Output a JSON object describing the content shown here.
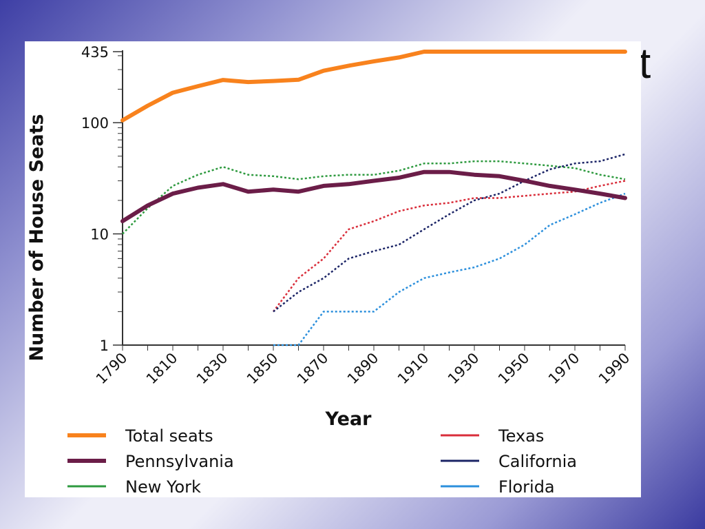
{
  "slide": {
    "title_fragment": "t",
    "background_colors": [
      "#3e3fa5",
      "#eeeef8",
      "#3b3ba0"
    ]
  },
  "chart_data": {
    "type": "line",
    "title": "",
    "xlabel": "Year",
    "ylabel": "Number of House Seats",
    "xlim": [
      1790,
      1990
    ],
    "ylim": [
      1,
      435
    ],
    "yscale": "log",
    "x_ticks": [
      "1790",
      "1810",
      "1830",
      "1850",
      "1870",
      "1890",
      "1910",
      "1930",
      "1950",
      "1970",
      "1990"
    ],
    "y_ticks": [
      "1",
      "10",
      "100",
      "435"
    ],
    "grid": false,
    "legend_position": "bottom",
    "series": [
      {
        "name": "Total seats",
        "color": "#f8821d",
        "style": "solid",
        "weight": "heavy",
        "points": [
          [
            1790,
            105
          ],
          [
            1800,
            142
          ],
          [
            1810,
            186
          ],
          [
            1820,
            213
          ],
          [
            1830,
            242
          ],
          [
            1840,
            232
          ],
          [
            1850,
            237
          ],
          [
            1860,
            243
          ],
          [
            1870,
            293
          ],
          [
            1880,
            325
          ],
          [
            1890,
            356
          ],
          [
            1900,
            386
          ],
          [
            1910,
            435
          ],
          [
            1920,
            435
          ],
          [
            1930,
            435
          ],
          [
            1940,
            435
          ],
          [
            1950,
            435
          ],
          [
            1960,
            435
          ],
          [
            1970,
            435
          ],
          [
            1980,
            435
          ],
          [
            1990,
            435
          ]
        ]
      },
      {
        "name": "Pennsylvania",
        "color": "#6b1d48",
        "style": "solid",
        "weight": "heavy",
        "points": [
          [
            1790,
            13
          ],
          [
            1800,
            18
          ],
          [
            1810,
            23
          ],
          [
            1820,
            26
          ],
          [
            1830,
            28
          ],
          [
            1840,
            24
          ],
          [
            1850,
            25
          ],
          [
            1860,
            24
          ],
          [
            1870,
            27
          ],
          [
            1880,
            28
          ],
          [
            1890,
            30
          ],
          [
            1900,
            32
          ],
          [
            1910,
            36
          ],
          [
            1920,
            36
          ],
          [
            1930,
            34
          ],
          [
            1940,
            33
          ],
          [
            1950,
            30
          ],
          [
            1960,
            27
          ],
          [
            1970,
            25
          ],
          [
            1980,
            23
          ],
          [
            1990,
            21
          ]
        ]
      },
      {
        "name": "New York",
        "color": "#2e9a3f",
        "style": "dotted",
        "weight": "light",
        "points": [
          [
            1790,
            10
          ],
          [
            1800,
            17
          ],
          [
            1810,
            27
          ],
          [
            1820,
            34
          ],
          [
            1830,
            40
          ],
          [
            1840,
            34
          ],
          [
            1850,
            33
          ],
          [
            1860,
            31
          ],
          [
            1870,
            33
          ],
          [
            1880,
            34
          ],
          [
            1890,
            34
          ],
          [
            1900,
            37
          ],
          [
            1910,
            43
          ],
          [
            1920,
            43
          ],
          [
            1930,
            45
          ],
          [
            1940,
            45
          ],
          [
            1950,
            43
          ],
          [
            1960,
            41
          ],
          [
            1970,
            39
          ],
          [
            1980,
            34
          ],
          [
            1990,
            31
          ]
        ]
      },
      {
        "name": "Texas",
        "color": "#d92d3a",
        "style": "dotted",
        "weight": "light",
        "points": [
          [
            1850,
            2
          ],
          [
            1860,
            4
          ],
          [
            1870,
            6
          ],
          [
            1880,
            11
          ],
          [
            1890,
            13
          ],
          [
            1900,
            16
          ],
          [
            1910,
            18
          ],
          [
            1920,
            19
          ],
          [
            1930,
            21
          ],
          [
            1940,
            21
          ],
          [
            1950,
            22
          ],
          [
            1960,
            23
          ],
          [
            1970,
            24
          ],
          [
            1980,
            27
          ],
          [
            1990,
            30
          ]
        ]
      },
      {
        "name": "California",
        "color": "#1b2466",
        "style": "dotted",
        "weight": "light",
        "points": [
          [
            1850,
            2
          ],
          [
            1860,
            3
          ],
          [
            1870,
            4
          ],
          [
            1880,
            6
          ],
          [
            1890,
            7
          ],
          [
            1900,
            8
          ],
          [
            1910,
            11
          ],
          [
            1920,
            15
          ],
          [
            1930,
            20
          ],
          [
            1940,
            23
          ],
          [
            1950,
            30
          ],
          [
            1960,
            38
          ],
          [
            1970,
            43
          ],
          [
            1980,
            45
          ],
          [
            1990,
            52
          ]
        ]
      },
      {
        "name": "Florida",
        "color": "#2b8fdc",
        "style": "dotted",
        "weight": "light",
        "points": [
          [
            1850,
            1
          ],
          [
            1860,
            1
          ],
          [
            1870,
            2
          ],
          [
            1880,
            2
          ],
          [
            1890,
            2
          ],
          [
            1900,
            3
          ],
          [
            1910,
            4
          ],
          [
            1920,
            4.5
          ],
          [
            1930,
            5
          ],
          [
            1940,
            6
          ],
          [
            1950,
            8
          ],
          [
            1960,
            12
          ],
          [
            1970,
            15
          ],
          [
            1980,
            19
          ],
          [
            1990,
            23
          ]
        ]
      }
    ]
  }
}
